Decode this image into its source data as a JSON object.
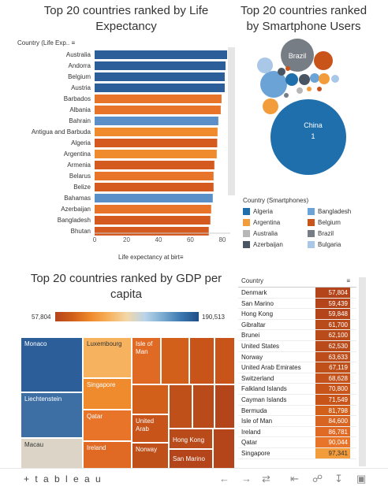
{
  "titles": {
    "life": "Top 20  countries ranked by Life Expectancy",
    "smart": "Top 20 countries ranked by Smartphone Users",
    "gdp": "Top 20 countries ranked by GDP per capita"
  },
  "life": {
    "header": "Country (Life Exp..",
    "axis_title": "Life expectancy at birt",
    "ticks": [
      "0",
      "20",
      "40",
      "60",
      "80"
    ]
  },
  "chart_data": [
    {
      "type": "bar",
      "title": "Top 20  countries ranked by Life Expectancy",
      "xlabel": "Life expectancy at birt",
      "ylabel": "Country (Life Exp..",
      "xlim": [
        0,
        90
      ],
      "categories": [
        "Australia",
        "Andorra",
        "Belgium",
        "Austria",
        "Barbados",
        "Albania",
        "Bahrain",
        "Antigua and Barbuda",
        "Algeria",
        "Argentina",
        "Armenia",
        "Belarus",
        "Belize",
        "Bahamas",
        "Azerbaijan",
        "Bangladesh",
        "Bhutan"
      ],
      "values": [
        83.0,
        82.0,
        81.5,
        81.5,
        79.5,
        79.0,
        77.5,
        77.0,
        76.8,
        76.5,
        75.0,
        74.5,
        74.5,
        74.0,
        73.0,
        72.5,
        71.5
      ],
      "colors": [
        "#2c5f9a",
        "#2c5f9a",
        "#2c5f9a",
        "#2c5f9a",
        "#e8742a",
        "#e8742a",
        "#5b8fc7",
        "#ef8b2c",
        "#d55a1f",
        "#ef8b2c",
        "#d55a1f",
        "#e8742a",
        "#d55a1f",
        "#5b8fc7",
        "#e8742a",
        "#d55a1f",
        "#d55a1f"
      ]
    },
    {
      "type": "bubble",
      "title": "Top 20 countries ranked by Smartphone Users",
      "labels": [
        "China",
        "Brazil"
      ],
      "label_values": [
        "1",
        ""
      ]
    },
    {
      "type": "treemap",
      "title": "Top 20 countries ranked by GDP per capita",
      "legend_range": [
        57804,
        190513
      ]
    },
    {
      "type": "table",
      "columns": [
        "Country"
      ],
      "rows": [
        {
          "country": "Denmark",
          "value": "57,804"
        },
        {
          "country": "San Marino",
          "value": "59,439"
        },
        {
          "country": "Hong Kong",
          "value": "59,848"
        },
        {
          "country": "Gibraltar",
          "value": "61,700"
        },
        {
          "country": "Brunei",
          "value": "62,100"
        },
        {
          "country": "United States",
          "value": "62,530"
        },
        {
          "country": "Norway",
          "value": "63,633"
        },
        {
          "country": "United Arab Emirates",
          "value": "67,119"
        },
        {
          "country": "Switzerland",
          "value": "68,628"
        },
        {
          "country": "Falkland Islands",
          "value": "70,800"
        },
        {
          "country": "Cayman Islands",
          "value": "71,549"
        },
        {
          "country": "Bermuda",
          "value": "81,798"
        },
        {
          "country": "Isle of Man",
          "value": "84,600"
        },
        {
          "country": "Ireland",
          "value": "86,781"
        },
        {
          "country": "Qatar",
          "value": "90,044"
        },
        {
          "country": "Singapore",
          "value": "97,341"
        }
      ]
    }
  ],
  "smart_legend": {
    "title": "Country (Smartphones)",
    "items": [
      {
        "label": "Algeria",
        "color": "#1f6fad"
      },
      {
        "label": "Bangladesh",
        "color": "#6ba3d6"
      },
      {
        "label": "Argentina",
        "color": "#f39c3c"
      },
      {
        "label": "Belgium",
        "color": "#c8541a"
      },
      {
        "label": "Australia",
        "color": "#b7b7b7"
      },
      {
        "label": "Brazil",
        "color": "#777d84"
      },
      {
        "label": "Azerbaijan",
        "color": "#4a5564"
      },
      {
        "label": "Bulgaria",
        "color": "#a9c8e8"
      }
    ]
  },
  "bubble_labels": {
    "china": "China",
    "china_rank": "1",
    "brazil": "Brazil"
  },
  "gdp_legend": {
    "low": "57,804",
    "high": "190,513"
  },
  "treemap": {
    "monaco": "Monaco",
    "luxembourg": "Luxembourg",
    "isle_of_man": "Isle of Man",
    "liechtenstein": "Liechtenstein",
    "singapore": "Singapore",
    "qatar": "Qatar",
    "united_arab": "United Arab",
    "hong_kong": "Hong Kong",
    "macau": "Macau",
    "ireland": "Ireland",
    "norway": "Norway",
    "san_marino": "San Marino"
  },
  "table": {
    "header": "Country",
    "sort_icon": "sort-icon"
  },
  "footer": {
    "brand": "+ t a b l e a u"
  }
}
